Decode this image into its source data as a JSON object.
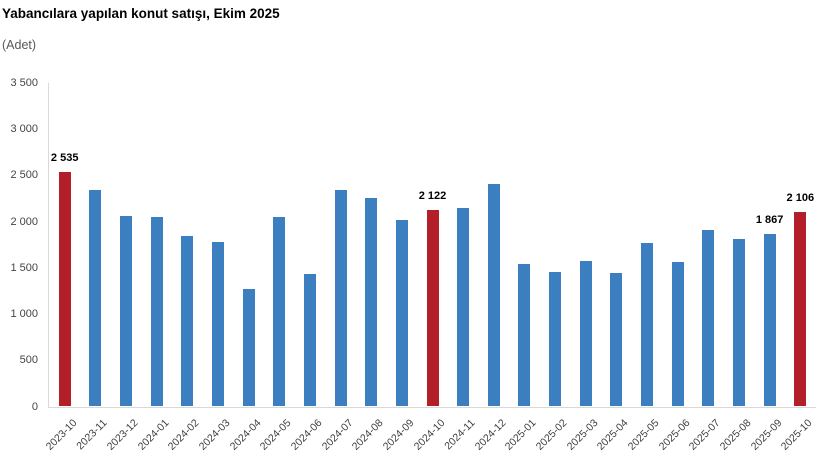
{
  "header": {
    "title": "Yabancılara yapılan konut satışı, Ekim 2025",
    "subtitle": "(Adet)"
  },
  "colors": {
    "bar_blue": "#3c7fc0",
    "bar_red": "#b21f28",
    "axis_line": "#d9d9d9",
    "tick_text": "#444444",
    "xlabel_text": "#3f3f3f"
  },
  "chart_data": {
    "type": "bar",
    "title": "Yabancılara yapılan konut satışı, Ekim 2025",
    "ylabel": "(Adet)",
    "xlabel": "",
    "categories": [
      "2023-10",
      "2023-11",
      "2023-12",
      "2024-01",
      "2024-02",
      "2024-03",
      "2024-04",
      "2024-05",
      "2024-06",
      "2024-07",
      "2024-08",
      "2024-09",
      "2024-10",
      "2024-11",
      "2024-12",
      "2025-01",
      "2025-02",
      "2025-03",
      "2025-04",
      "2025-05",
      "2025-06",
      "2025-07",
      "2025-08",
      "2025-09",
      "2025-10"
    ],
    "values": [
      2535,
      2345,
      2065,
      2055,
      1840,
      1775,
      1270,
      2055,
      1435,
      2345,
      2255,
      2020,
      2122,
      2150,
      2410,
      1540,
      1455,
      1570,
      1440,
      1770,
      1560,
      1910,
      1815,
      1867,
      2106
    ],
    "highlight_indices": [
      0,
      12,
      24
    ],
    "data_labels": [
      {
        "index": 0,
        "text": "2 535"
      },
      {
        "index": 12,
        "text": "2 122"
      },
      {
        "index": 23,
        "text": "1 867"
      },
      {
        "index": 24,
        "text": "2 106"
      }
    ],
    "ylim": [
      0,
      3500
    ],
    "yticks": [
      "0",
      "500",
      "1 000",
      "1 500",
      "2 000",
      "2 500",
      "3 000",
      "3 500"
    ],
    "grid": false,
    "legend": "none"
  }
}
